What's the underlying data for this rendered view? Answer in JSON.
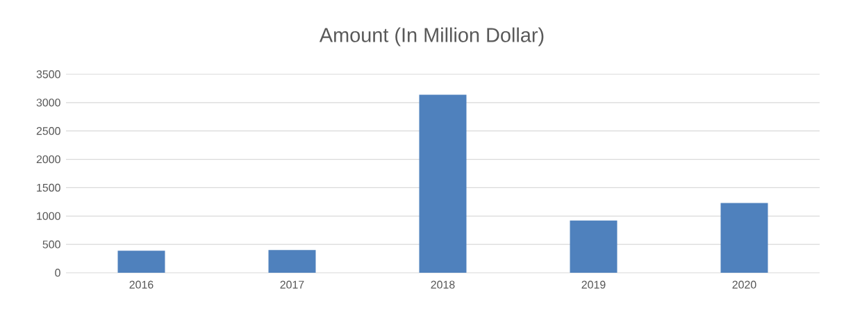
{
  "chart_data": {
    "type": "bar",
    "title": "Amount (In Million Dollar)",
    "categories": [
      "2016",
      "2017",
      "2018",
      "2019",
      "2020"
    ],
    "values": [
      390,
      400,
      3140,
      920,
      1230
    ],
    "color": "#4f81bd",
    "ylim": [
      0,
      3500
    ],
    "yticks": [
      0,
      500,
      1000,
      1500,
      2000,
      2500,
      3000,
      3500
    ],
    "grid": "y"
  }
}
